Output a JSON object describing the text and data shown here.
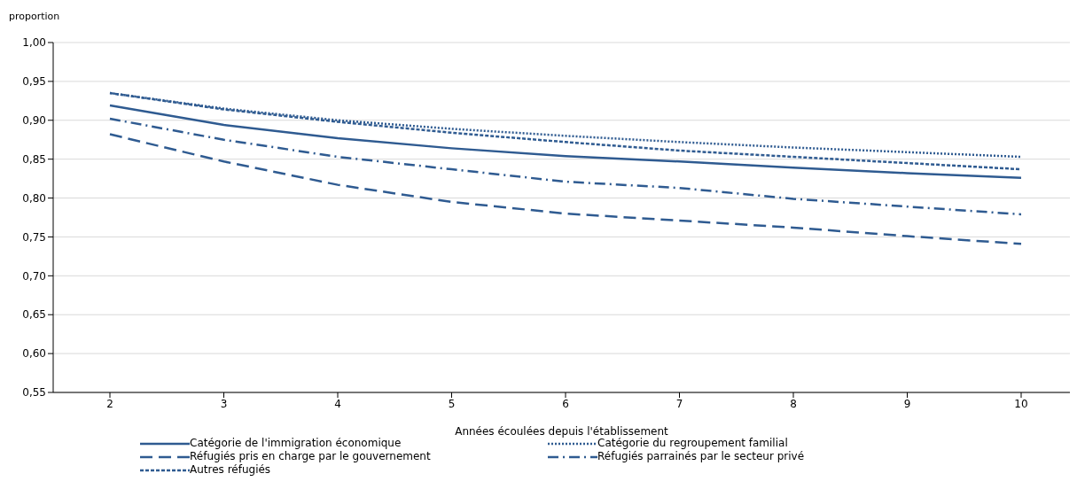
{
  "chart_data": {
    "type": "line",
    "ylabel": "proportion",
    "xlabel": "Années écoulées depuis l'établissement",
    "categories": [
      "2",
      "3",
      "4",
      "5",
      "6",
      "7",
      "8",
      "9",
      "10"
    ],
    "ylim": [
      0.55,
      1.0
    ],
    "yticks": [
      {
        "value": 0.55,
        "label": "0,55"
      },
      {
        "value": 0.6,
        "label": "0,60"
      },
      {
        "value": 0.65,
        "label": "0,65"
      },
      {
        "value": 0.7,
        "label": "0,70"
      },
      {
        "value": 0.75,
        "label": "0,75"
      },
      {
        "value": 0.8,
        "label": "0,80"
      },
      {
        "value": 0.85,
        "label": "0,85"
      },
      {
        "value": 0.9,
        "label": "0,90"
      },
      {
        "value": 0.95,
        "label": "0,95"
      },
      {
        "value": 1.0,
        "label": "1,00"
      }
    ],
    "grid": "y",
    "legend": "bottom",
    "marker": "none",
    "series": [
      {
        "name": "Catégorie de l'immigration économique",
        "color": "#2f5b91",
        "line_style": "solid",
        "values": [
          0.919,
          0.894,
          0.877,
          0.864,
          0.854,
          0.847,
          0.839,
          0.832,
          0.826
        ]
      },
      {
        "name": "Catégorie du regroupement familial",
        "color": "#2f5b91",
        "line_style": "dotted",
        "values": [
          0.935,
          0.915,
          0.9,
          0.889,
          0.88,
          0.872,
          0.865,
          0.859,
          0.853
        ]
      },
      {
        "name": "Réfugiés pris en charge par le gouvernement",
        "color": "#2f5b91",
        "line_style": "longdash",
        "values": [
          0.882,
          0.847,
          0.817,
          0.795,
          0.78,
          0.771,
          0.762,
          0.751,
          0.741
        ]
      },
      {
        "name": "Réfugiés parrainés par le secteur privé",
        "color": "#2f5b91",
        "line_style": "dashdot",
        "values": [
          0.902,
          0.875,
          0.853,
          0.837,
          0.821,
          0.813,
          0.799,
          0.789,
          0.779
        ]
      },
      {
        "name": "Autres réfugiés",
        "color": "#2f5b91",
        "line_style": "dashed",
        "values": [
          0.935,
          0.914,
          0.898,
          0.884,
          0.872,
          0.861,
          0.853,
          0.845,
          0.837
        ]
      }
    ]
  }
}
